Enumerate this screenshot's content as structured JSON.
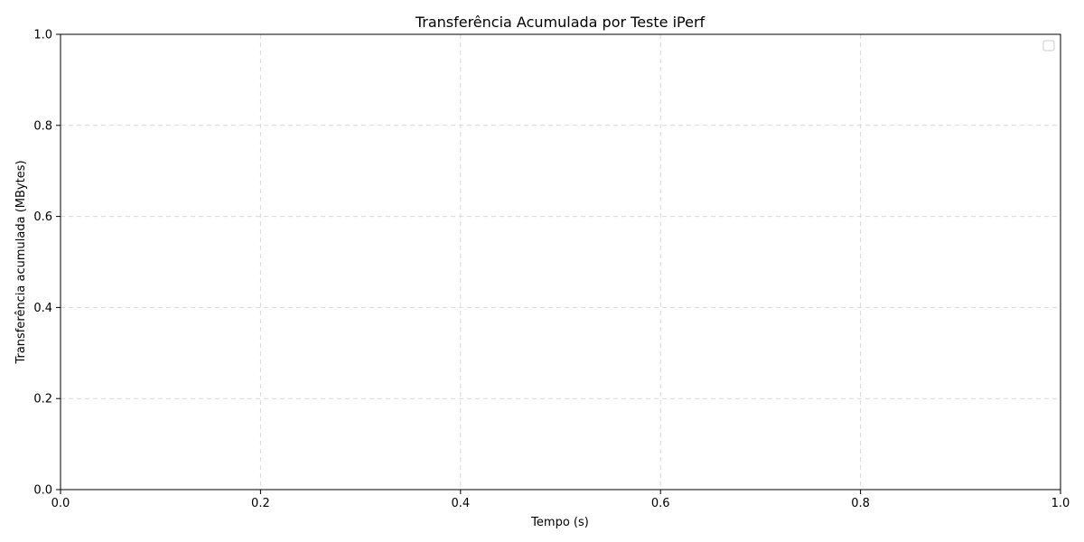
{
  "chart_data": {
    "type": "line",
    "title": "Transferência Acumulada por Teste iPerf",
    "xlabel": "Tempo (s)",
    "ylabel": "Transferência acumulada (MBytes)",
    "xlim": [
      0.0,
      1.0
    ],
    "ylim": [
      0.0,
      1.0
    ],
    "xticks": [
      "0.0",
      "0.2",
      "0.4",
      "0.6",
      "0.8",
      "1.0"
    ],
    "yticks": [
      "0.0",
      "0.2",
      "0.4",
      "0.6",
      "0.8",
      "1.0"
    ],
    "grid": true,
    "grid_style": "dashed",
    "legend_position": "top-right",
    "series": [],
    "colors": {
      "axis": "#000000",
      "grid": "#d9d9d9",
      "legend_border": "#cccccc"
    }
  }
}
